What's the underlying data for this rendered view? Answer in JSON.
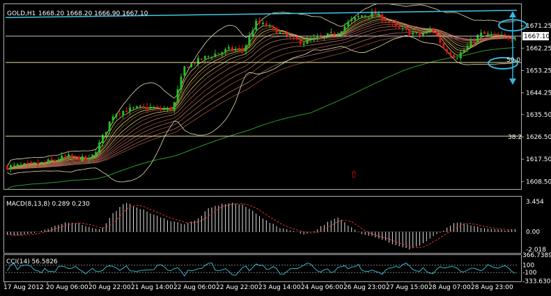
{
  "header": {
    "symbol": "GOLD,H1",
    "ohlc": "1668.20 1668.20 1666.90 1667.10"
  },
  "chart_data": [
    {
      "type": "candlestick",
      "title": "GOLD,H1  1668.20 1668.20 1666.90 1667.10",
      "yticks": [
        "1671.25",
        "1662.25",
        "1653.25",
        "1644.25",
        "1635.50",
        "1626.50",
        "1617.50",
        "1608.50"
      ],
      "ylim": [
        1605.5,
        1680.0
      ],
      "last_price": "1667.10",
      "levels": [
        {
          "label": "50.0",
          "value": 1656.5
        },
        {
          "label": "38.2",
          "value": 1626.8
        },
        {
          "label": "",
          "value": 1667.1
        }
      ],
      "trendline": {
        "from": 1674.6,
        "to": 1677.5
      },
      "close_path": [
        1614.5,
        1614.8,
        1615.2,
        1616.0,
        1617.2,
        1618.6,
        1618.0,
        1617.0,
        1625.5,
        1636.0,
        1637.2,
        1638.0,
        1638.4,
        1637.6,
        1637.8,
        1654.5,
        1656.8,
        1659.0,
        1660.5,
        1662.0,
        1661.5,
        1672.5,
        1671.3,
        1668.5,
        1666.0,
        1664.6,
        1665.8,
        1667.0,
        1668.8,
        1673.0,
        1675.5,
        1676.3,
        1673.8,
        1670.2,
        1668.6,
        1667.4,
        1670.0,
        1662.0,
        1658.5,
        1662.8,
        1668.0,
        1667.5,
        1666.5,
        1667.1
      ],
      "xticks": [
        "17 Aug 2012",
        "20 Aug 06:00",
        "20 Aug 22:00",
        "21 Aug 14:00",
        "22 Aug 06:00",
        "22 Aug 22:00",
        "23 Aug 14:00",
        "24 Aug 06:00",
        "26 Aug 23:00",
        "27 Aug 15:00",
        "28 Aug 07:00",
        "28 Aug 23:00"
      ]
    },
    {
      "type": "bar",
      "title": "MACD(8,13,8) 0.289 0.230",
      "yticks": [
        "3.454",
        "0.00",
        "-2.018"
      ],
      "ylim": [
        -2.4,
        4.0
      ],
      "values_path": [
        -0.3,
        -0.4,
        -0.2,
        0.1,
        0.6,
        1.1,
        1.0,
        0.5,
        0.3,
        2.2,
        3.3,
        2.8,
        2.2,
        1.6,
        1.2,
        0.9,
        1.3,
        2.6,
        3.1,
        3.3,
        3.0,
        2.2,
        1.2,
        0.5,
        0.2,
        -0.3,
        0.1,
        1.0,
        1.6,
        0.6,
        -0.2,
        -0.5,
        -1.0,
        -1.6,
        -2.0,
        -1.5,
        -0.6,
        0.2,
        1.1,
        0.8,
        0.5,
        0.3,
        0.2,
        0.29
      ]
    },
    {
      "type": "line",
      "title": "CCI(14) 56.5826",
      "yticks": [
        "366.7389",
        "100",
        "-100",
        "-333.630"
      ],
      "ylim": [
        -340,
        370
      ],
      "levels": [
        100,
        -100
      ]
    }
  ],
  "annotations": {
    "arrow": "⇧"
  }
}
